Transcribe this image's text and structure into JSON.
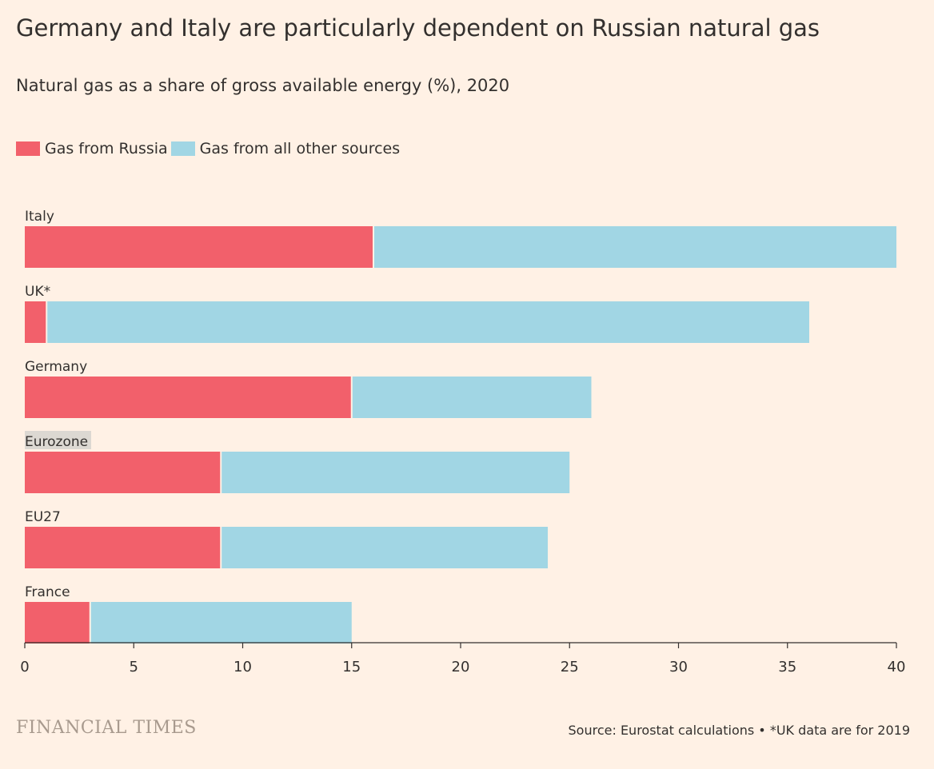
{
  "header": {
    "title": "Germany and Italy are particularly dependent on Russian natural gas",
    "subtitle": "Natural gas as a share of gross available energy (%), 2020"
  },
  "legend": [
    {
      "label": "Gas from Russia",
      "color": "#f2606b"
    },
    {
      "label": "Gas from all other sources",
      "color": "#a1d6e4"
    }
  ],
  "chart_data": {
    "type": "bar",
    "orientation": "horizontal",
    "stacked": true,
    "categories": [
      "Italy",
      "UK*",
      "Germany",
      "Eurozone",
      "EU27",
      "France"
    ],
    "series": [
      {
        "name": "Gas from Russia",
        "color": "#f2606b",
        "values": [
          16,
          1,
          15,
          9,
          9,
          3
        ]
      },
      {
        "name": "Gas from all other sources",
        "color": "#a1d6e4",
        "values": [
          24,
          35,
          11,
          16,
          15,
          12
        ]
      }
    ],
    "xlim": [
      0,
      40
    ],
    "xticks": [
      0,
      5,
      10,
      15,
      20,
      25,
      30,
      35,
      40
    ],
    "highlighted_category": "Eurozone",
    "highlight_color": "#dcd8d2",
    "grid": false,
    "legend_position": "top-left"
  },
  "footer": {
    "brand": "FINANCIAL TIMES",
    "source": "Source: Eurostat calculations • *UK data are for 2019"
  }
}
